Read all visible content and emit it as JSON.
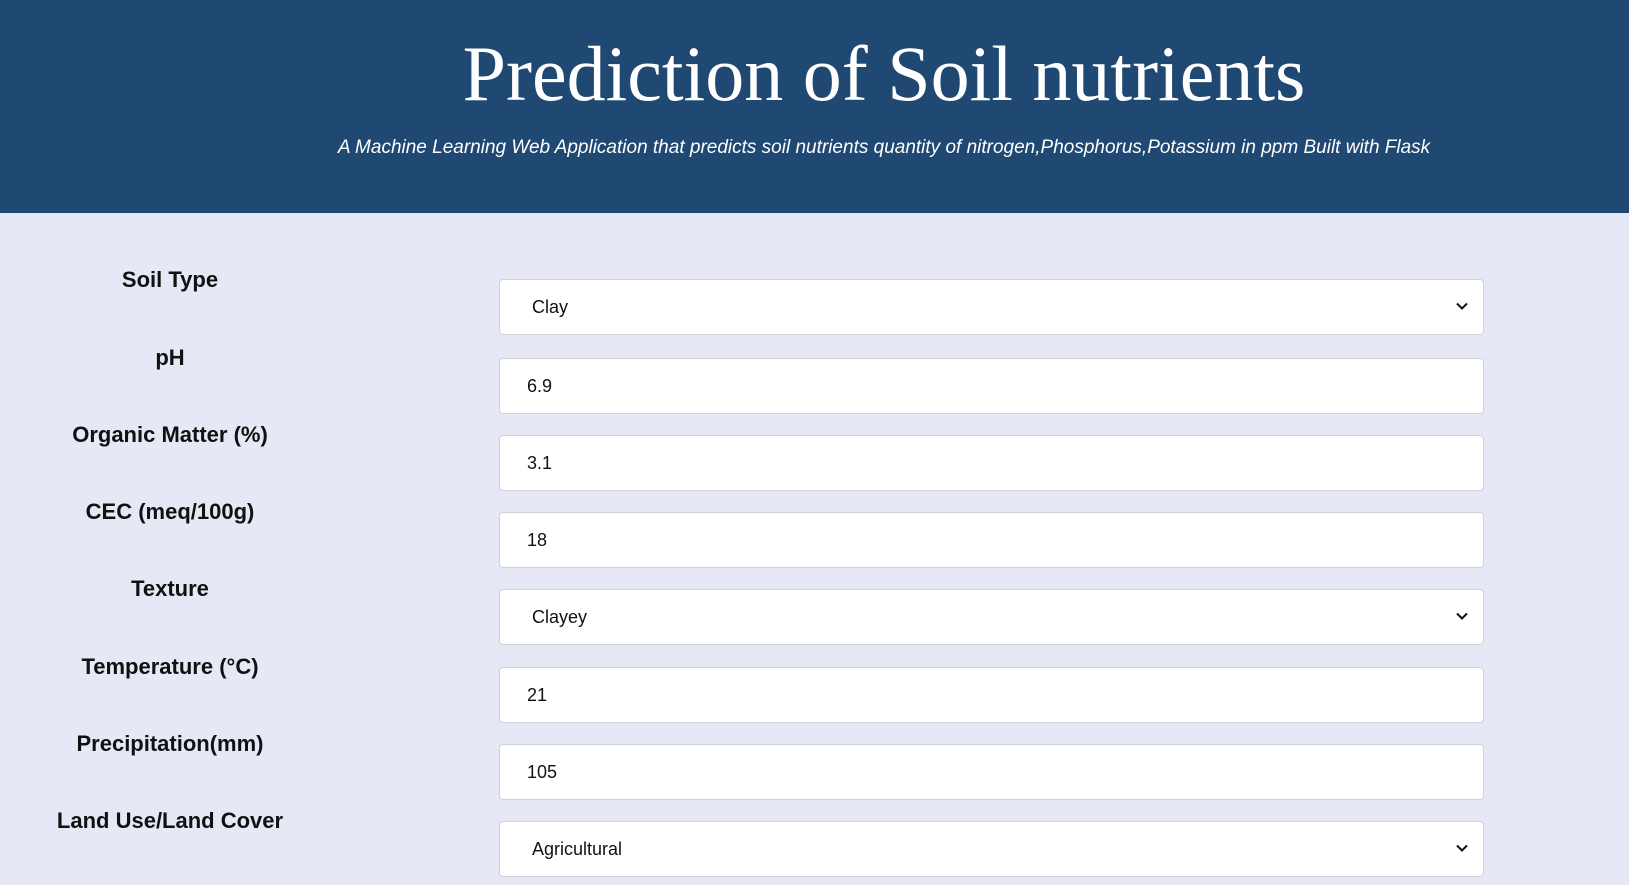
{
  "header": {
    "title": "Prediction of Soil nutrients",
    "subtitle": "A Machine Learning Web Application that predicts soil nutrients quantity of nitrogen,Phosphorus,Potassium in ppm Built with Flask"
  },
  "colors": {
    "header_bg": "#1f4872",
    "page_bg": "#e6e9f5",
    "field_bg": "#ffffff",
    "field_border": "#cfd2da"
  },
  "form": {
    "soil_type": {
      "label": "Soil Type",
      "value": "Clay",
      "control": "select"
    },
    "ph": {
      "label": "pH",
      "value": "6.9",
      "control": "input"
    },
    "organic_matter": {
      "label": "Organic Matter (%)",
      "value": "3.1",
      "control": "input"
    },
    "cec": {
      "label": "CEC (meq/100g)",
      "value": "18",
      "control": "input"
    },
    "texture": {
      "label": "Texture",
      "value": "Clayey",
      "control": "select"
    },
    "temperature": {
      "label": "Temperature (°C)",
      "value": "21",
      "control": "input"
    },
    "precipitation": {
      "label": "Precipitation(mm)",
      "value": "105",
      "control": "input"
    },
    "land_use": {
      "label": "Land Use/Land Cover",
      "value": "Agricultural",
      "control": "select"
    }
  },
  "icons": {
    "select_arrow": "chevron-down-icon"
  }
}
